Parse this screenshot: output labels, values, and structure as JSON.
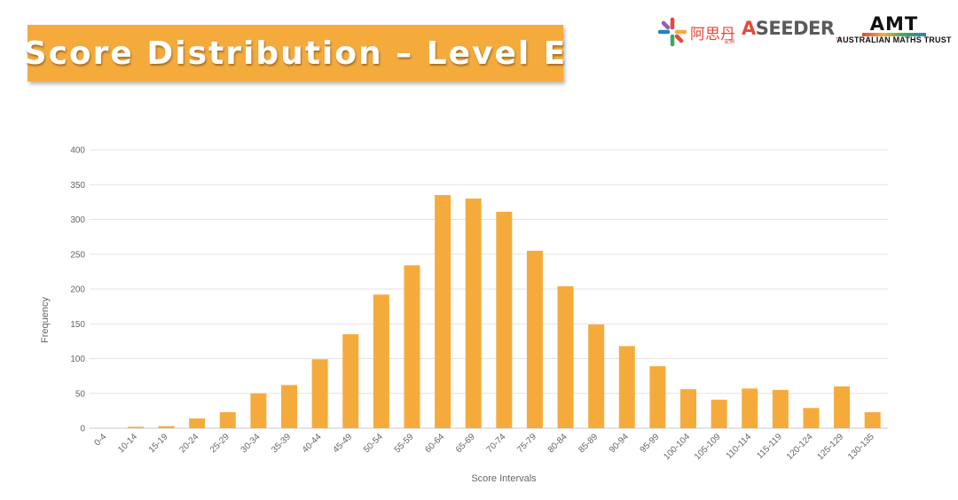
{
  "header": {
    "title": "Score Distribution – Level E"
  },
  "logos": {
    "asi_text": "阿思丹",
    "asi_sub": "亚洲",
    "aseeder_a": "A",
    "aseeder_rest": "SEEDER",
    "aseeder_tm": "TM",
    "amt_mark": "AMT",
    "amt_name": "AUSTRALIAN MATHS TRUST"
  },
  "chart_data": {
    "type": "bar",
    "title": "",
    "xlabel": "Score Intervals",
    "ylabel": "Frequency",
    "ylim": [
      0,
      400
    ],
    "yticks": [
      0,
      50,
      100,
      150,
      200,
      250,
      300,
      350,
      400
    ],
    "grid": true,
    "bar_color": "#f5ab3c",
    "categories": [
      "0-4",
      "10-14",
      "15-19",
      "20-24",
      "25-29",
      "30-34",
      "35-39",
      "40-44",
      "45-49",
      "50-54",
      "55-59",
      "60-64",
      "65-69",
      "70-74",
      "75-79",
      "80-84",
      "85-89",
      "90-94",
      "95-99",
      "100-104",
      "105-109",
      "110-114",
      "115-119",
      "120-124",
      "125-129",
      "130-135"
    ],
    "values": [
      0,
      2,
      3,
      14,
      23,
      50,
      62,
      99,
      135,
      192,
      234,
      335,
      330,
      311,
      255,
      204,
      149,
      118,
      89,
      56,
      41,
      57,
      55,
      29,
      60,
      23
    ]
  }
}
